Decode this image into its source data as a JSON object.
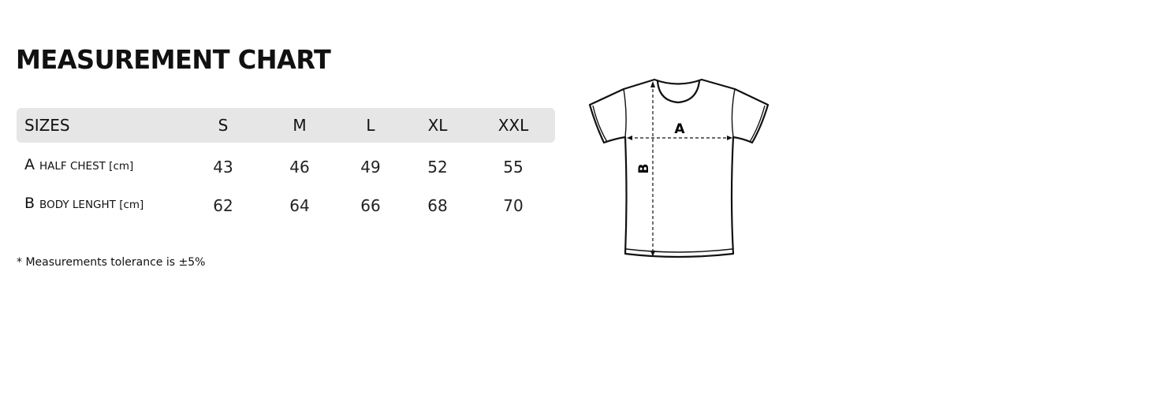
{
  "title": "MEASUREMENT CHART",
  "table": {
    "header": [
      "SIZES",
      "S",
      "M",
      "L",
      "XL",
      "XXL"
    ],
    "rows": [
      {
        "letter": "A",
        "label": "HALF CHEST [cm]",
        "values": [
          "43",
          "46",
          "49",
          "52",
          "55"
        ]
      },
      {
        "letter": "B",
        "label": "BODY LENGHT [cm]",
        "values": [
          "62",
          "64",
          "66",
          "68",
          "70"
        ]
      }
    ]
  },
  "footnote": "* Measurements tolerance is ±5%",
  "diagram": {
    "label_a": "A",
    "label_b": "B"
  },
  "colors": {
    "header_bg": "#e6e6e6",
    "text": "#111111"
  }
}
